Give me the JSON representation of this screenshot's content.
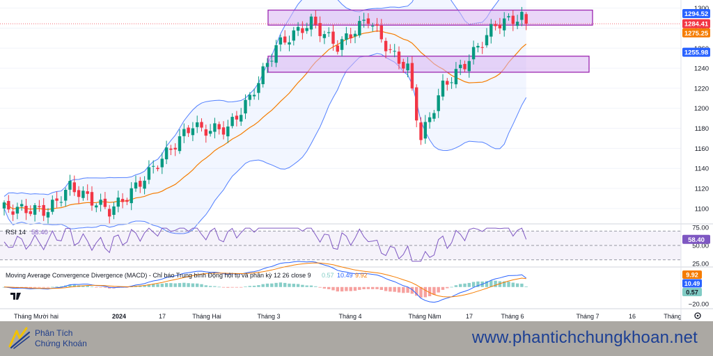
{
  "chart_data": [
    {
      "type": "candlestick",
      "panel": "price",
      "ylim": [
        1086,
        1306
      ],
      "y_ticks": [
        1100,
        1120,
        1140,
        1160,
        1180,
        1200,
        1220,
        1240,
        1260,
        1280,
        1300
      ],
      "price_labels": [
        {
          "value": 1294.52,
          "text": "1294.52",
          "color": "#2962ff"
        },
        {
          "value": 1284.41,
          "text": "1284.41",
          "color": "#f23645"
        },
        {
          "value": 1275.25,
          "text": "1275.25",
          "color": "#f57c00"
        },
        {
          "value": 1255.98,
          "text": "1255.98",
          "color": "#2962ff"
        }
      ],
      "current_price": 1284.41,
      "zones": [
        {
          "from": 1283,
          "to": 1298,
          "start": "Tháng 3",
          "end": "Tháng 7"
        },
        {
          "from": 1236,
          "to": 1252,
          "start": "Tháng 3",
          "end": "Tháng 7"
        }
      ],
      "colors": {
        "up": "#089981",
        "down": "#f23645",
        "band": "#2962ff",
        "ma": "#f57c00",
        "zone_fill": "#d8b4f2",
        "zone_border": "#9c27b0"
      }
    },
    {
      "type": "line",
      "panel": "rsi",
      "title": "RSI 14",
      "value": 58.4,
      "value_text": "58.40",
      "ylim": [
        22,
        78
      ],
      "y_ticks": [
        {
          "value": 75,
          "text": "75.00"
        },
        {
          "value": 50,
          "text": "50.00"
        },
        {
          "value": 25,
          "text": "25.00"
        }
      ],
      "bands": [
        70,
        50,
        30
      ],
      "color": "#7e57c2"
    },
    {
      "type": "bar",
      "panel": "macd",
      "title": "Moving Average Convergence Divergence (MACD) - Chỉ báo Trung bình Động hội tụ và phân kỳ 12 26 close 9",
      "values": [
        {
          "value": 0.57,
          "text": "0.57",
          "color": "#80cbc4"
        },
        {
          "value": 10.49,
          "text": "10.49",
          "color": "#2962ff"
        },
        {
          "value": 9.92,
          "text": "9.92",
          "color": "#f57c00"
        }
      ],
      "ylim": [
        -24,
        22
      ],
      "y_ticks": [
        {
          "value": -20,
          "text": "−20.00"
        }
      ]
    }
  ],
  "x_axis_labels": [
    "Tháng Mười hai",
    "2024",
    "17",
    "Tháng Hai",
    "Tháng 3",
    "Tháng 4",
    "Tháng Năm",
    "17",
    "Tháng 6",
    "Tháng 7",
    "16",
    "Tháng"
  ],
  "branding": {
    "logo_line1": "Phân Tích",
    "logo_line2": "Chứng Khoán",
    "url": "www.phantichchungkhoan.net"
  }
}
